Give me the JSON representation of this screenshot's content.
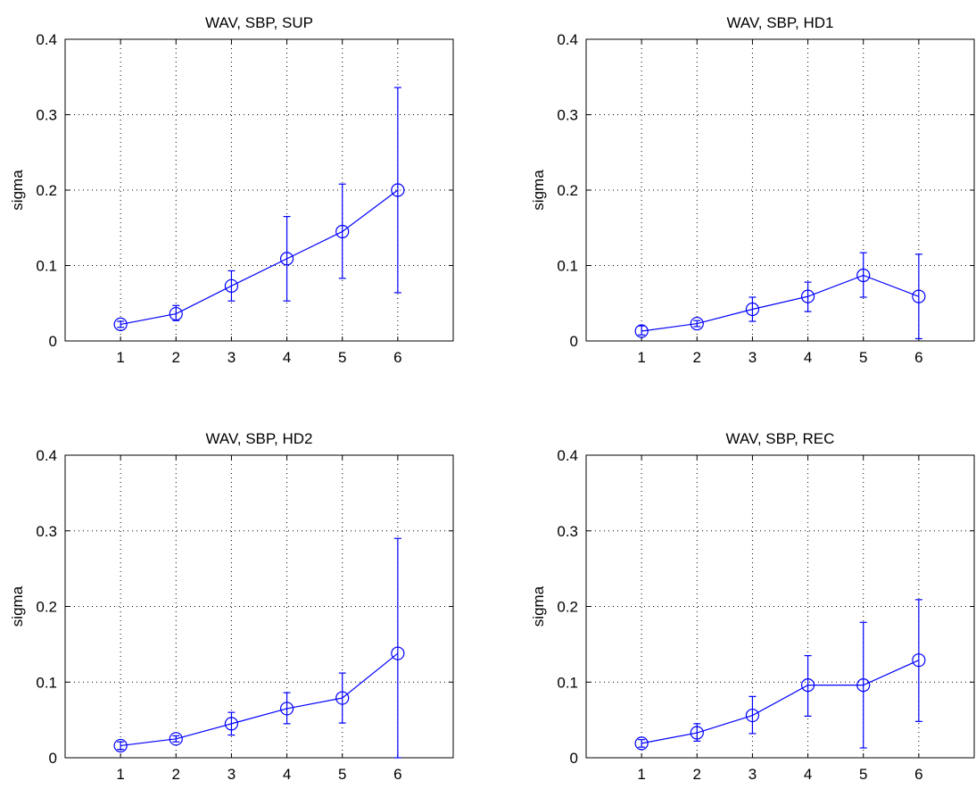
{
  "chart_data": [
    {
      "type": "line",
      "title": "WAV, SBP, SUP",
      "xlabel": "",
      "ylabel": "sigma",
      "x": [
        1,
        2,
        3,
        4,
        5,
        6
      ],
      "xlim": [
        0,
        7
      ],
      "ylim": [
        0,
        0.4
      ],
      "xticks": [
        "1",
        "2",
        "3",
        "4",
        "5",
        "6"
      ],
      "yticks": [
        "0",
        "0.1",
        "0.2",
        "0.3",
        "0.4"
      ],
      "grid": true,
      "marker": "circle",
      "color": "#0000ff",
      "series": [
        {
          "values": [
            0.022,
            0.036,
            0.073,
            0.109,
            0.145,
            0.2
          ],
          "err_low": [
            0.018,
            0.027,
            0.053,
            0.053,
            0.083,
            0.064
          ],
          "err_high": [
            0.026,
            0.047,
            0.093,
            0.165,
            0.208,
            0.336
          ]
        }
      ]
    },
    {
      "type": "line",
      "title": "WAV, SBP, HD1",
      "xlabel": "",
      "ylabel": "sigma",
      "x": [
        1,
        2,
        3,
        4,
        5,
        6
      ],
      "xlim": [
        0,
        7
      ],
      "ylim": [
        0,
        0.4
      ],
      "xticks": [
        "1",
        "2",
        "3",
        "4",
        "5",
        "6"
      ],
      "yticks": [
        "0",
        "0.1",
        "0.2",
        "0.3",
        "0.4"
      ],
      "grid": true,
      "marker": "circle",
      "color": "#0000ff",
      "series": [
        {
          "values": [
            0.013,
            0.023,
            0.042,
            0.059,
            0.087,
            0.059
          ],
          "err_low": [
            0.008,
            0.019,
            0.026,
            0.039,
            0.058,
            0.003
          ],
          "err_high": [
            0.02,
            0.027,
            0.058,
            0.078,
            0.117,
            0.115
          ]
        }
      ]
    },
    {
      "type": "line",
      "title": "WAV, SBP, HD2",
      "xlabel": "",
      "ylabel": "sigma",
      "x": [
        1,
        2,
        3,
        4,
        5,
        6
      ],
      "xlim": [
        0,
        7
      ],
      "ylim": [
        0,
        0.4
      ],
      "xticks": [
        "1",
        "2",
        "3",
        "4",
        "5",
        "6"
      ],
      "yticks": [
        "0",
        "0.1",
        "0.2",
        "0.3",
        "0.4"
      ],
      "grid": true,
      "marker": "circle",
      "color": "#0000ff",
      "series": [
        {
          "values": [
            0.016,
            0.025,
            0.045,
            0.065,
            0.079,
            0.138
          ],
          "err_low": [
            0.011,
            0.021,
            0.03,
            0.045,
            0.046,
            0.0
          ],
          "err_high": [
            0.021,
            0.029,
            0.06,
            0.086,
            0.112,
            0.29
          ]
        }
      ]
    },
    {
      "type": "line",
      "title": "WAV, SBP, REC",
      "xlabel": "",
      "ylabel": "sigma",
      "x": [
        1,
        2,
        3,
        4,
        5,
        6
      ],
      "xlim": [
        0,
        7
      ],
      "ylim": [
        0,
        0.4
      ],
      "xticks": [
        "1",
        "2",
        "3",
        "4",
        "5",
        "6"
      ],
      "yticks": [
        "0",
        "0.1",
        "0.2",
        "0.3",
        "0.4"
      ],
      "grid": true,
      "marker": "circle",
      "color": "#0000ff",
      "series": [
        {
          "values": [
            0.019,
            0.033,
            0.056,
            0.096,
            0.096,
            0.129
          ],
          "err_low": [
            0.014,
            0.022,
            0.032,
            0.055,
            0.013,
            0.048
          ],
          "err_high": [
            0.024,
            0.045,
            0.081,
            0.135,
            0.179,
            0.209
          ]
        }
      ]
    }
  ]
}
